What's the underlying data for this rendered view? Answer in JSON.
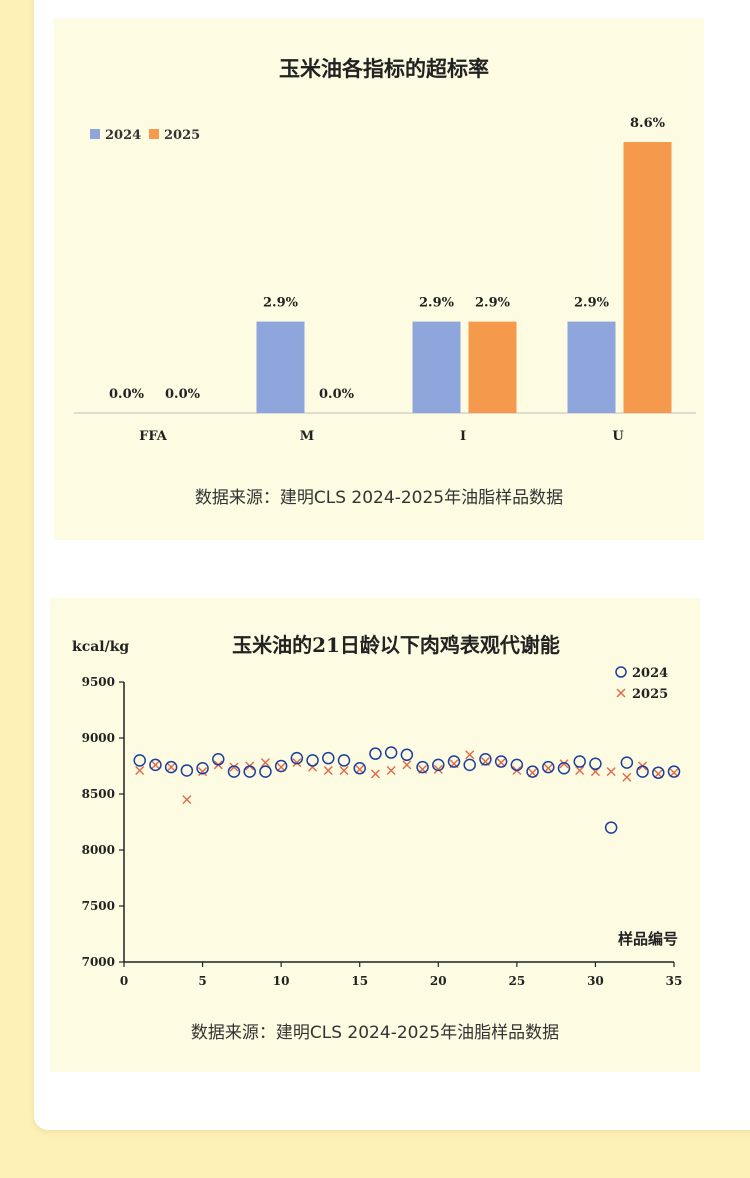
{
  "source_text": "数据来源：建明CLS 2024-2025年油脂样品数据",
  "chart_data": [
    {
      "type": "bar",
      "title": "玉米油各指标的超标率",
      "categories": [
        "FFA",
        "M",
        "I",
        "U"
      ],
      "series": [
        {
          "name": "2024",
          "color": "#8fa6dc",
          "values": [
            0.0,
            2.9,
            2.9,
            2.9
          ],
          "labels": [
            "0.0%",
            "2.9%",
            "2.9%",
            "2.9%"
          ]
        },
        {
          "name": "2025",
          "color": "#f59a4c",
          "values": [
            0.0,
            0.0,
            2.9,
            8.6
          ],
          "labels": [
            "0.0%",
            "0.0%",
            "2.9%",
            "8.6%"
          ]
        }
      ],
      "ylim": [
        0,
        8.6
      ],
      "legend": "top-left"
    },
    {
      "type": "scatter",
      "title": "玉米油的21日龄以下肉鸡表观代谢能",
      "ylabel": "kcal/kg",
      "xlabel": "样品编号",
      "xlim": [
        0,
        35
      ],
      "ylim": [
        7000,
        9500
      ],
      "xticks": [
        0,
        5,
        10,
        15,
        20,
        25,
        30,
        35
      ],
      "yticks": [
        7000,
        7500,
        8000,
        8500,
        9000,
        9500
      ],
      "legend": "top-right",
      "series": [
        {
          "name": "2024",
          "marker": "circle",
          "color": "#1c3f9e",
          "x": [
            1,
            2,
            3,
            4,
            5,
            6,
            7,
            8,
            9,
            10,
            11,
            12,
            13,
            14,
            15,
            16,
            17,
            18,
            19,
            20,
            21,
            22,
            23,
            24,
            25,
            26,
            27,
            28,
            29,
            30,
            31,
            32,
            33,
            34,
            35
          ],
          "y": [
            8800,
            8760,
            8740,
            8710,
            8730,
            8810,
            8700,
            8700,
            8700,
            8750,
            8820,
            8800,
            8820,
            8800,
            8730,
            8860,
            8870,
            8850,
            8740,
            8760,
            8790,
            8760,
            8810,
            8790,
            8760,
            8700,
            8740,
            8730,
            8790,
            8770,
            8200,
            8780,
            8700,
            8690,
            8700
          ]
        },
        {
          "name": "2025",
          "marker": "x",
          "color": "#e0694a",
          "x": [
            1,
            2,
            3,
            4,
            5,
            6,
            7,
            8,
            9,
            10,
            11,
            12,
            13,
            14,
            15,
            16,
            17,
            18,
            19,
            20,
            21,
            22,
            23,
            24,
            25,
            26,
            27,
            28,
            29,
            30,
            31,
            32,
            33,
            34,
            35
          ],
          "y": [
            8710,
            8760,
            8740,
            8450,
            8700,
            8760,
            8740,
            8750,
            8780,
            8740,
            8780,
            8740,
            8710,
            8710,
            8720,
            8680,
            8710,
            8760,
            8720,
            8720,
            8770,
            8850,
            8790,
            8780,
            8710,
            8690,
            8730,
            8770,
            8710,
            8700,
            8700,
            8650,
            8750,
            8680,
            8690
          ]
        }
      ]
    }
  ]
}
